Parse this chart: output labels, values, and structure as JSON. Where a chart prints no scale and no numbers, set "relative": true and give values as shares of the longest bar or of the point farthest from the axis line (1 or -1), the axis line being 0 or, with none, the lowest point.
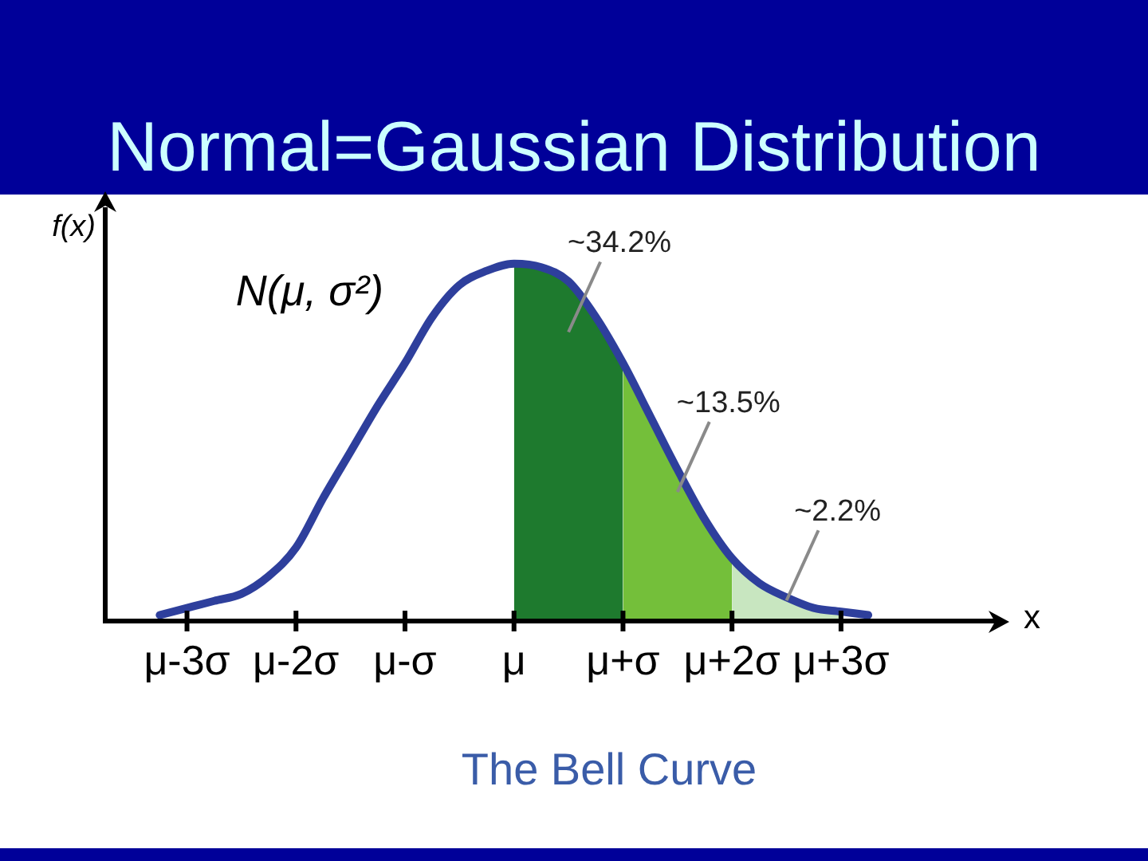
{
  "chart_data": {
    "type": "line",
    "title": "Normal=Gaussian Distribution",
    "xlabel": "x",
    "ylabel": "f(x)",
    "relative": true,
    "tick_labels": "x",
    "marker": "none",
    "categories": [
      null,
      null,
      null,
      "μ-3σ",
      null,
      null,
      null,
      "μ-2σ",
      null,
      null,
      null,
      "μ-σ",
      null,
      null,
      null,
      "μ",
      null,
      null,
      null,
      "μ+σ",
      null,
      null,
      null,
      "μ+2σ",
      null,
      null,
      null,
      "μ+3σ",
      null,
      null,
      null,
      null,
      null,
      null
    ],
    "series": [
      {
        "name": "N(μ, σ²)",
        "color": "#2e3f9c",
        "values": [
          null,
          null,
          0.01,
          0.03,
          0.05,
          0.07,
          0.12,
          0.2,
          0.34,
          0.47,
          0.6,
          0.72,
          0.85,
          0.94,
          0.98,
          1,
          0.99,
          0.95,
          0.85,
          0.72,
          0.57,
          0.42,
          0.28,
          0.17,
          0.1,
          0.06,
          0.03,
          0.02,
          0.01,
          null,
          null,
          null,
          null,
          null
        ]
      },
      {
        "type": "area",
        "color": "#1e7a2e",
        "values": [
          null,
          null,
          null,
          null,
          null,
          null,
          null,
          null,
          null,
          null,
          null,
          null,
          null,
          null,
          null,
          1,
          0.99,
          0.95,
          0.85,
          0.72,
          null,
          null,
          null,
          null,
          null,
          null,
          null,
          null,
          null,
          null,
          null,
          null,
          null,
          null
        ]
      },
      {
        "type": "area",
        "color": "#74bf3a",
        "values": [
          null,
          null,
          null,
          null,
          null,
          null,
          null,
          null,
          null,
          null,
          null,
          null,
          null,
          null,
          null,
          null,
          null,
          null,
          null,
          0.72,
          0.57,
          0.42,
          0.28,
          0.17,
          null,
          null,
          null,
          null,
          null,
          null,
          null,
          null,
          null,
          null
        ]
      },
      {
        "type": "area",
        "color": "#c8e6c0",
        "values": [
          null,
          null,
          null,
          null,
          null,
          null,
          null,
          null,
          null,
          null,
          null,
          null,
          null,
          null,
          null,
          null,
          null,
          null,
          null,
          null,
          null,
          null,
          null,
          0.17,
          0.1,
          0.06,
          0.03,
          0.02,
          null,
          null,
          null,
          null,
          null,
          null
        ]
      }
    ],
    "annotations": [
      "~34.2%",
      "~13.5%",
      "~2.2%",
      "The Bell Curve"
    ]
  }
}
